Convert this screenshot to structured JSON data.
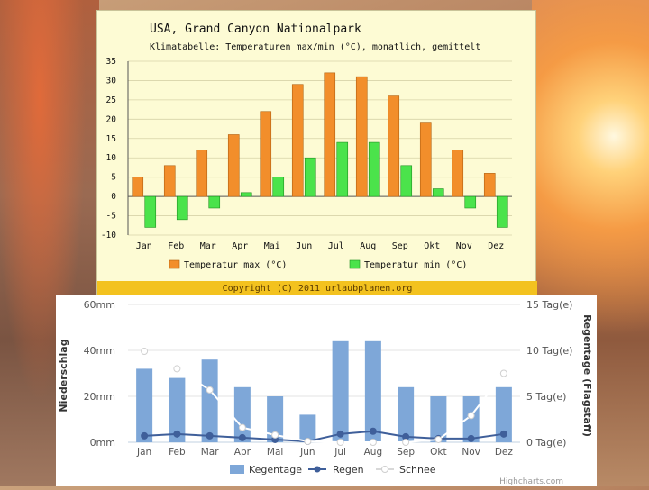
{
  "chart_data": [
    {
      "type": "bar",
      "title": "USA, Grand Canyon Nationalpark",
      "subtitle": "Klimatabelle: Temperaturen max/min (°C), monatlich, gemittelt",
      "categories": [
        "Jan",
        "Feb",
        "Mar",
        "Apr",
        "Mai",
        "Jun",
        "Jul",
        "Aug",
        "Sep",
        "Okt",
        "Nov",
        "Dez"
      ],
      "series": [
        {
          "name": "Temperatur max (°C)",
          "color": "#f28e2b",
          "values": [
            5,
            8,
            12,
            16,
            22,
            29,
            32,
            31,
            26,
            19,
            12,
            6
          ]
        },
        {
          "name": "Temperatur min (°C)",
          "color": "#4be34b",
          "values": [
            -8,
            -6,
            -3,
            1,
            5,
            10,
            14,
            14,
            8,
            2,
            -3,
            -8
          ]
        }
      ],
      "ylim": [
        -10,
        35
      ],
      "yticks": [
        "35",
        "30",
        "25",
        "20",
        "15",
        "10",
        "5",
        "0",
        "-5",
        "-10"
      ],
      "copyright": "Copyright (C) 2011 urlaubplanen.org",
      "copyright_bg": "#f3c21f"
    },
    {
      "type": "bar+line",
      "categories": [
        "Jan",
        "Feb",
        "Mar",
        "Apr",
        "Mai",
        "Jun",
        "Jul",
        "Aug",
        "Sep",
        "Okt",
        "Nov",
        "Dez"
      ],
      "left_axis": {
        "label": "Niederschlag",
        "ticks": [
          "60mm",
          "40mm",
          "20mm",
          "0mm"
        ],
        "ylim": [
          0,
          60
        ]
      },
      "right_axis": {
        "label": "Regentage (Flagstaff)",
        "ticks": [
          "15 Tag(e)",
          "10 Tag(e)",
          "5 Tag(e)",
          "0 Tag(e)"
        ],
        "ylim": [
          0,
          15
        ]
      },
      "series": [
        {
          "name": "Kegentage",
          "type": "bar",
          "axis": "left",
          "color": "#7ea7d8",
          "values": [
            32,
            28,
            36,
            24,
            20,
            12,
            44,
            44,
            24,
            20,
            20,
            24
          ]
        },
        {
          "name": "Regen",
          "type": "line",
          "axis": "right",
          "color": "#3f5f9a",
          "values": [
            0.7,
            0.9,
            0.7,
            0.5,
            0.3,
            0.1,
            0.9,
            1.2,
            0.6,
            0.4,
            0.4,
            0.9
          ]
        },
        {
          "name": "Schnee",
          "type": "line",
          "axis": "right",
          "color": "#ffffff",
          "values": [
            9.9,
            8.0,
            5.7,
            1.6,
            0.8,
            0.1,
            0,
            0,
            0,
            0.3,
            2.9,
            7.5
          ]
        }
      ],
      "credit": "Highcharts.com"
    }
  ]
}
